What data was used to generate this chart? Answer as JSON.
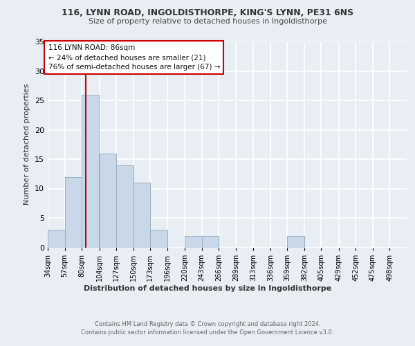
{
  "title1": "116, LYNN ROAD, INGOLDISTHORPE, KING'S LYNN, PE31 6NS",
  "title2": "Size of property relative to detached houses in Ingoldisthorpe",
  "xlabel": "Distribution of detached houses by size in Ingoldisthorpe",
  "ylabel": "Number of detached properties",
  "bin_labels": [
    "34sqm",
    "57sqm",
    "80sqm",
    "104sqm",
    "127sqm",
    "150sqm",
    "173sqm",
    "196sqm",
    "220sqm",
    "243sqm",
    "266sqm",
    "289sqm",
    "313sqm",
    "336sqm",
    "359sqm",
    "382sqm",
    "405sqm",
    "429sqm",
    "452sqm",
    "475sqm",
    "498sqm"
  ],
  "bin_edges": [
    34,
    57,
    80,
    104,
    127,
    150,
    173,
    196,
    220,
    243,
    266,
    289,
    313,
    336,
    359,
    382,
    405,
    429,
    452,
    475,
    498
  ],
  "bar_heights": [
    3,
    12,
    26,
    16,
    14,
    11,
    3,
    0,
    2,
    2,
    0,
    0,
    0,
    0,
    2,
    0,
    0,
    0,
    0,
    0,
    0
  ],
  "bar_color": "#c8d8e8",
  "bar_edge_color": "#9ab0c4",
  "subject_size": 86,
  "subject_line_color": "#cc0000",
  "annotation_line1": "116 LYNN ROAD: 86sqm",
  "annotation_line2": "← 24% of detached houses are smaller (21)",
  "annotation_line3": "76% of semi-detached houses are larger (67) →",
  "annotation_box_color": "#ffffff",
  "annotation_box_edge_color": "#cc0000",
  "footer1": "Contains HM Land Registry data © Crown copyright and database right 2024.",
  "footer2": "Contains public sector information licensed under the Open Government Licence v3.0.",
  "bg_color": "#e8eef4",
  "plot_bg_color": "#e8eef4",
  "grid_color": "#ffffff",
  "ylim": [
    0,
    35
  ],
  "yticks": [
    0,
    5,
    10,
    15,
    20,
    25,
    30,
    35
  ]
}
